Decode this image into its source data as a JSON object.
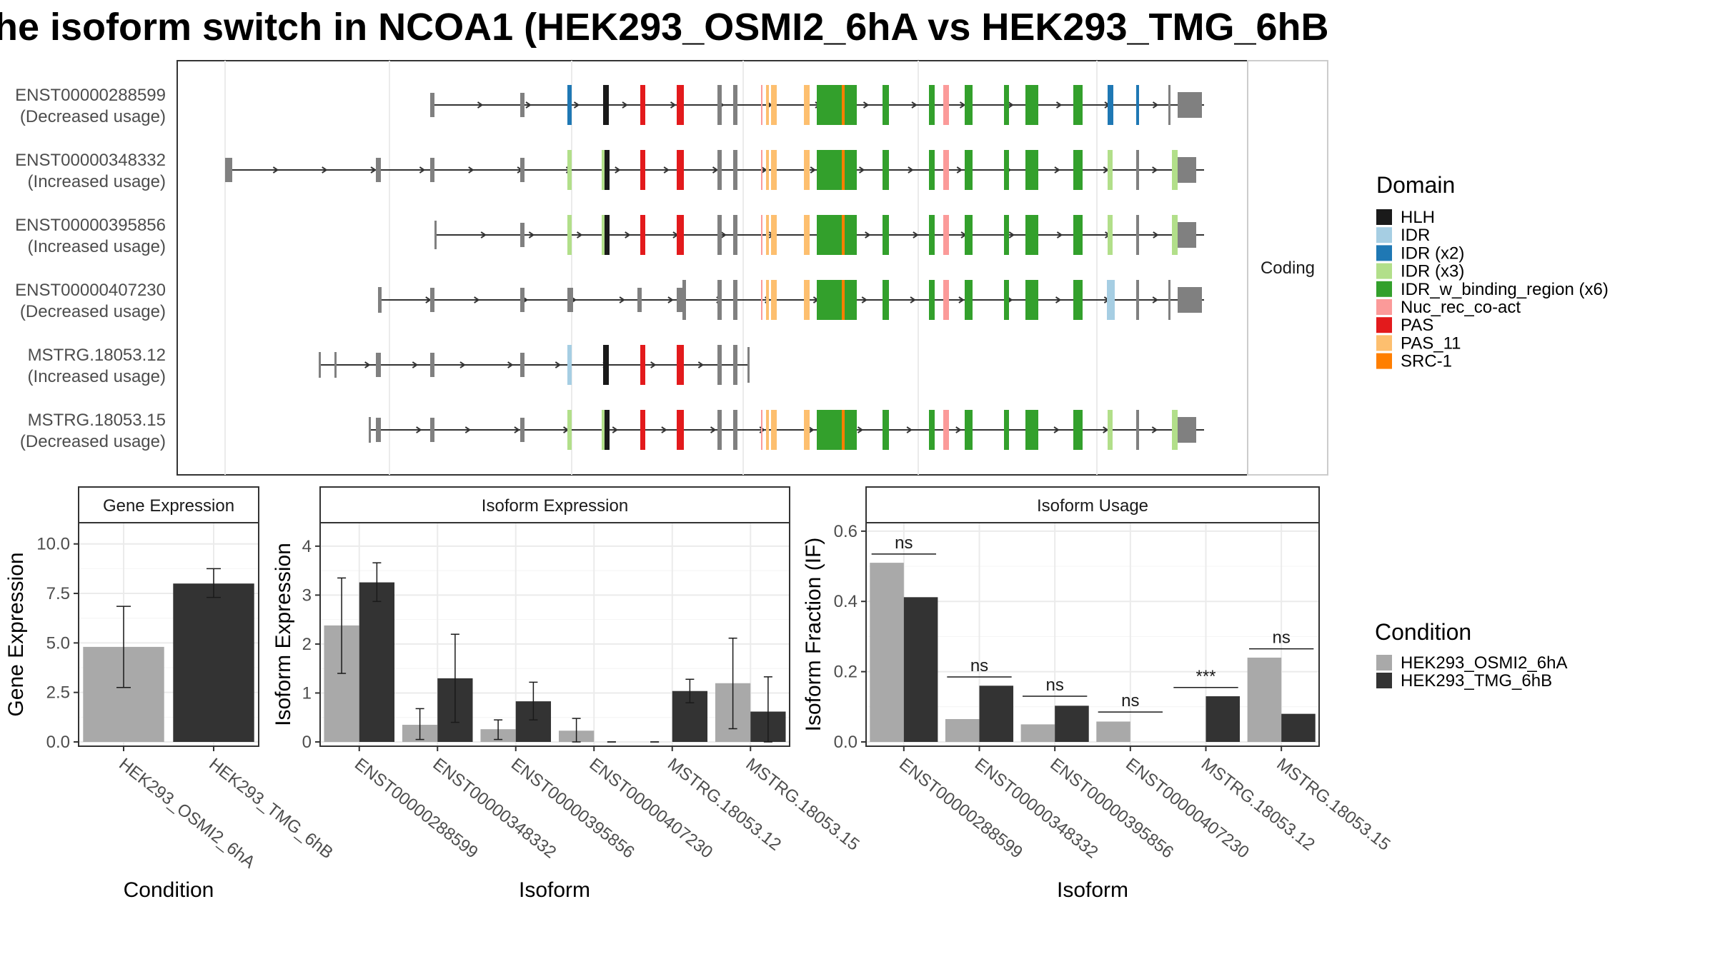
{
  "title": "he isoform switch in NCOA1 (HEK293_OSMI2_6hA vs HEK293_TMG_6hB",
  "colors": {
    "HLH": "#1a1a1a",
    "IDR": "#a6cee3",
    "IDR (x2)": "#1f78b4",
    "IDR (x3)": "#b2df8a",
    "IDR_w_binding_region (x6)": "#33a02c",
    "Nuc_rec_co-act": "#fb9a99",
    "PAS": "#e31a1c",
    "PAS_11": "#fdbf6f",
    "SRC-1": "#ff7f00",
    "noncoding": "#808080",
    "cond_A": "#a9a9a9",
    "cond_B": "#333333"
  },
  "structure_panel": {
    "strip_label": "Coding",
    "transcripts": [
      {
        "id": "ENST00000288599",
        "usage": "(Decreased usage)"
      },
      {
        "id": "ENST00000348332",
        "usage": "(Increased usage)"
      },
      {
        "id": "ENST00000395856",
        "usage": "(Increased usage)"
      },
      {
        "id": "ENST00000407230",
        "usage": "(Decreased usage)"
      },
      {
        "id": "MSTRG.18053.12",
        "usage": "(Increased usage)"
      },
      {
        "id": "MSTRG.18053.15",
        "usage": "(Decreased usage)"
      }
    ]
  },
  "legend_domain": {
    "title": "Domain",
    "items": [
      "HLH",
      "IDR",
      "IDR (x2)",
      "IDR (x3)",
      "IDR_w_binding_region (x6)",
      "Nuc_rec_co-act",
      "PAS",
      "PAS_11",
      "SRC-1"
    ]
  },
  "legend_condition": {
    "title": "Condition",
    "items": [
      "HEK293_OSMI2_6hA",
      "HEK293_TMG_6hB"
    ]
  },
  "chart_data": [
    {
      "type": "bar",
      "title": "Gene Expression",
      "xlabel": "Condition",
      "ylabel": "Gene Expression",
      "categories": [
        "HEK293_OSMI2_6hA",
        "HEK293_TMG_6hB"
      ],
      "values": [
        4.8,
        8.0
      ],
      "error_low": [
        2.75,
        7.3
      ],
      "error_high": [
        6.85,
        8.75
      ],
      "ylim": [
        0,
        11
      ],
      "yticks": [
        "0.0",
        "2.5",
        "5.0",
        "7.5",
        "10.0"
      ],
      "ytick_values": [
        0,
        2.5,
        5,
        7.5,
        10
      ]
    },
    {
      "type": "bar",
      "title": "Isoform Expression",
      "xlabel": "Isoform",
      "ylabel": "Isoform Expression",
      "categories": [
        "ENST00000288599",
        "ENST00000348332",
        "ENST00000395856",
        "ENST00000407230",
        "MSTRG.18053.12",
        "MSTRG.18053.15"
      ],
      "series": [
        {
          "name": "HEK293_OSMI2_6hA",
          "values": [
            2.38,
            0.35,
            0.26,
            0.23,
            0.0,
            1.2
          ],
          "err_low": [
            1.4,
            0.05,
            0.05,
            0.0,
            0.0,
            0.27
          ],
          "err_high": [
            3.35,
            0.68,
            0.45,
            0.48,
            0.0,
            2.12
          ]
        },
        {
          "name": "HEK293_TMG_6hB",
          "values": [
            3.26,
            1.3,
            0.83,
            0.0,
            1.04,
            0.62
          ],
          "err_low": [
            2.87,
            0.4,
            0.45,
            0.0,
            0.8,
            0.0
          ],
          "err_high": [
            3.66,
            2.2,
            1.22,
            0.0,
            1.28,
            1.33
          ]
        }
      ],
      "ylim": [
        0,
        4.45
      ],
      "yticks": [
        "0",
        "1",
        "2",
        "3",
        "4"
      ],
      "ytick_values": [
        0,
        1,
        2,
        3,
        4
      ]
    },
    {
      "type": "bar",
      "title": "Isoform Usage",
      "xlabel": "Isoform",
      "ylabel": "Isoform Fraction (IF)",
      "categories": [
        "ENST00000288599",
        "ENST00000348332",
        "ENST00000395856",
        "ENST00000407230",
        "MSTRG.18053.12",
        "MSTRG.18053.15"
      ],
      "series": [
        {
          "name": "HEK293_OSMI2_6hA",
          "values": [
            0.51,
            0.065,
            0.05,
            0.058,
            0.0,
            0.24
          ]
        },
        {
          "name": "HEK293_TMG_6hB",
          "values": [
            0.412,
            0.16,
            0.103,
            0.0,
            0.13,
            0.08
          ]
        }
      ],
      "significance": [
        "ns",
        "ns",
        "ns",
        "ns",
        "***",
        "ns"
      ],
      "sig_y": [
        0.535,
        0.185,
        0.13,
        0.085,
        0.155,
        0.265
      ],
      "ylim": [
        0,
        0.62
      ],
      "yticks": [
        "0.0",
        "0.2",
        "0.4",
        "0.6"
      ],
      "ytick_values": [
        0,
        0.2,
        0.4,
        0.6
      ]
    }
  ]
}
